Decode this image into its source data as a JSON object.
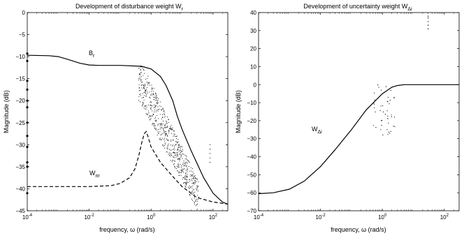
{
  "figure": {
    "left": {
      "title_main": "Development of disturbance weight W",
      "title_sub": "r",
      "xlabel": "frequency, ω (rad/s)",
      "ylabel": "Magnitude (dB)",
      "br_main": "B",
      "br_sub": "r",
      "wnr_main": "W",
      "wnr_sub": "nr"
    },
    "right": {
      "title_main": "Development of uncertainty weight W",
      "title_sub": "Δi",
      "xlabel": "frequency, ω (rad/s)",
      "ylabel": "Magnitude (dB)",
      "w_main": "W",
      "w_sub": "Δi"
    }
  },
  "chart_data": [
    {
      "type": "line",
      "title": "Development of disturbance weight W_r",
      "xlabel": "frequency, ω (rad/s)",
      "ylabel": "Magnitude (dB)",
      "xscale": "log",
      "xlim": [
        0.0001,
        300
      ],
      "ylim": [
        -45,
        0
      ],
      "xticks": [
        0.0001,
        0.01,
        1,
        100
      ],
      "xtick_labels": [
        [
          "10",
          "-4"
        ],
        [
          "10",
          "-2"
        ],
        [
          "10",
          "0"
        ],
        [
          "10",
          "2"
        ]
      ],
      "yticks": [
        0,
        -5,
        -10,
        -15,
        -20,
        -25,
        -30,
        -35,
        -40,
        -45
      ],
      "series": [
        {
          "name": "B_r",
          "style": "solid",
          "x": [
            0.0001,
            0.0005,
            0.001,
            0.002,
            0.005,
            0.01,
            0.02,
            0.05,
            0.1,
            0.5,
            1,
            2,
            3,
            5,
            7,
            10,
            20,
            50,
            100,
            200,
            300
          ],
          "y": [
            -9.7,
            -9.8,
            -10.0,
            -10.6,
            -11.5,
            -11.9,
            -12.0,
            -12.0,
            -12.0,
            -12.2,
            -12.8,
            -14.5,
            -16.5,
            -20.0,
            -23.5,
            -26.5,
            -31.5,
            -37.5,
            -41.0,
            -43.0,
            -43.5
          ]
        },
        {
          "name": "W_nr",
          "style": "dashed",
          "x": [
            0.0001,
            0.001,
            0.01,
            0.05,
            0.1,
            0.2,
            0.3,
            0.4,
            0.5,
            0.6,
            0.7,
            0.8,
            1,
            2,
            5,
            10,
            30,
            100,
            300
          ],
          "y": [
            -39.5,
            -39.5,
            -39.5,
            -39.3,
            -38.8,
            -37.5,
            -35.5,
            -32.5,
            -29.5,
            -27.5,
            -27.0,
            -28.2,
            -30.5,
            -34.0,
            -37.2,
            -39.5,
            -42.0,
            -43.0,
            -43.5
          ]
        }
      ]
    },
    {
      "type": "line",
      "title": "Development of uncertainty weight W_Δi",
      "xlabel": "frequency, ω (rad/s)",
      "ylabel": "Magnitude (dB)",
      "xscale": "log",
      "xlim": [
        0.0001,
        300
      ],
      "ylim": [
        -70,
        40
      ],
      "xticks": [
        0.0001,
        0.01,
        1,
        100
      ],
      "xtick_labels": [
        [
          "10",
          "-4"
        ],
        [
          "10",
          "-2"
        ],
        [
          "10",
          "0"
        ],
        [
          "10",
          "2"
        ]
      ],
      "yticks": [
        40,
        30,
        20,
        10,
        0,
        -10,
        -20,
        -30,
        -40,
        -50,
        -60,
        -70
      ],
      "series": [
        {
          "name": "W_Δi",
          "style": "solid",
          "x": [
            0.0001,
            0.0003,
            0.001,
            0.003,
            0.01,
            0.03,
            0.1,
            0.3,
            1,
            2,
            3,
            5,
            10,
            100,
            300
          ],
          "y": [
            -60.5,
            -60.0,
            -58.0,
            -53.5,
            -45.5,
            -36.0,
            -25.0,
            -14.0,
            -5.0,
            -1.5,
            -0.5,
            0.0,
            0.0,
            0.0,
            0.0
          ]
        }
      ]
    }
  ]
}
